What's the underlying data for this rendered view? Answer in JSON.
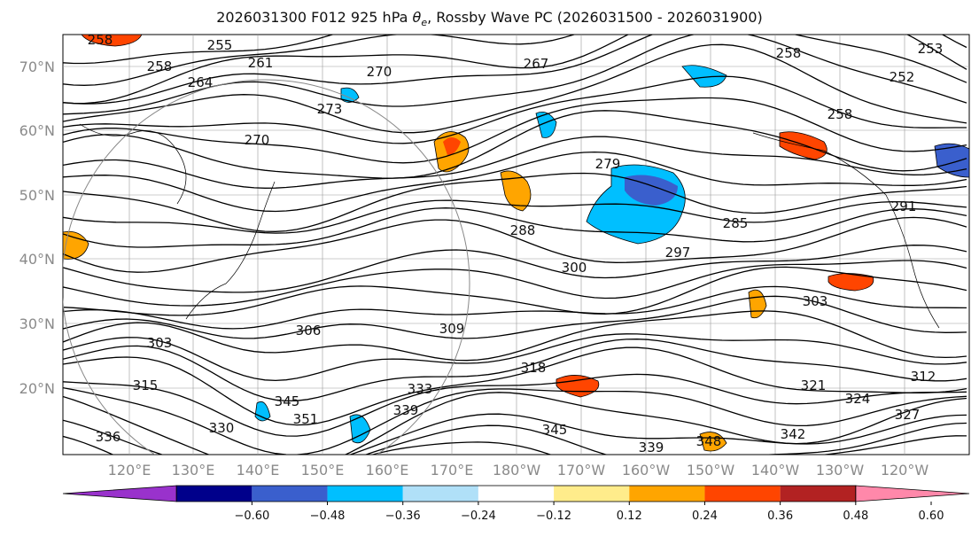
{
  "title": "2026031300 F012 925 hPa θe, Rossby Wave PC (2026031500 - 2026031900)",
  "title_parts": {
    "prefix": "2026031300 F012 925 hPa ",
    "symbol": "θ",
    "subscript": "e",
    "suffix": ", Rossby Wave PC (2026031500 - 2026031900)"
  },
  "lat_labels": [
    "70°N",
    "60°N",
    "50°N",
    "40°N",
    "30°N",
    "20°N"
  ],
  "lon_labels": [
    "120°E",
    "130°E",
    "140°E",
    "150°E",
    "160°E",
    "170°E",
    "180°W",
    "170°W",
    "160°W",
    "150°W",
    "140°W",
    "130°W",
    "120°W"
  ],
  "contour_labels": [
    "258",
    "255",
    "258",
    "261",
    "264",
    "270",
    "267",
    "258",
    "253",
    "252",
    "258",
    "273",
    "270",
    "279",
    "288",
    "285",
    "291",
    "300",
    "297",
    "303",
    "306",
    "309",
    "303",
    "315",
    "318",
    "321",
    "324",
    "327",
    "312",
    "336",
    "345",
    "351",
    "333",
    "339",
    "342",
    "345",
    "348",
    "339",
    "330"
  ],
  "colorbar": {
    "ticks": [
      "−0.60",
      "−0.48",
      "−0.36",
      "−0.24",
      "−0.12",
      "0.12",
      "0.24",
      "0.36",
      "0.48",
      "0.60"
    ],
    "colors": [
      "#9932cc",
      "#00008b",
      "#3a5fcd",
      "#00bfff",
      "#b0e0f8",
      "#ffffff",
      "#ffec8b",
      "#ffa500",
      "#ff4500",
      "#b22222",
      "#ff88aa"
    ]
  }
}
